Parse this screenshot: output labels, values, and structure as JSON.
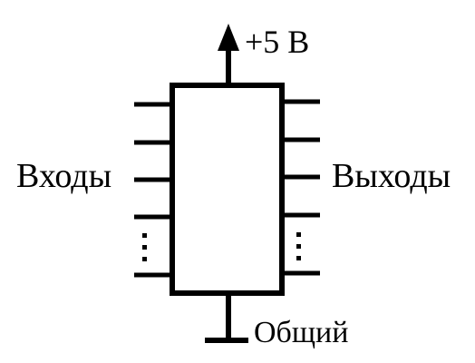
{
  "diagram": {
    "power_label": "+5 В",
    "inputs_label": "Входы",
    "outputs_label": "Выходы",
    "common_label": "Общий",
    "line_color": "#000000",
    "background_color": "#ffffff"
  }
}
